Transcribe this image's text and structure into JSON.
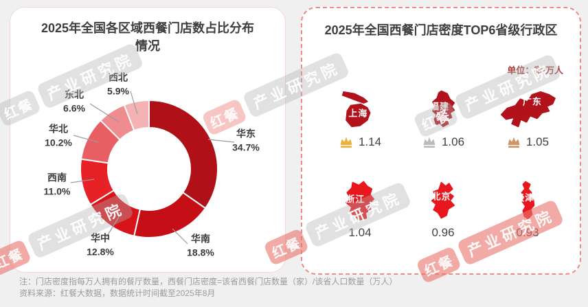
{
  "watermark": {
    "brand": "红餐",
    "org": "产业研究院"
  },
  "footer": {
    "note": "注：门店密度指每万人拥有的餐厅数量，西餐门店密度=该省西餐门店数量（家）/该省人口数量（万人）",
    "source": "资料来源：红餐大数据，数据统计时间截至2025年8月"
  },
  "chart_data": [
    {
      "type": "pie",
      "subtype": "donut",
      "title": "2025年全国各区域西餐门店数占比分布情况",
      "categories": [
        "华东",
        "华南",
        "华中",
        "西南",
        "华北",
        "东北",
        "西北"
      ],
      "values": [
        34.7,
        18.8,
        12.8,
        11.0,
        10.2,
        6.6,
        5.9
      ],
      "unit": "%",
      "colors": [
        "#b01118",
        "#c50e15",
        "#d8141b",
        "#e62227",
        "#e95e62",
        "#ef8c8f",
        "#f4b2b5"
      ],
      "start_angle_deg": 0,
      "direction": "clockwise",
      "inner_radius_ratio": 0.6,
      "legend": "none"
    },
    {
      "type": "table",
      "subtype": "map-ranking",
      "title": "2025年全国西餐门店密度TOP6省级行政区",
      "unit_label": "单位：家/万人",
      "items": [
        {
          "rank": 1,
          "name": "上海",
          "value": 1.14,
          "medal": "gold"
        },
        {
          "rank": 2,
          "name": "福建",
          "value": 1.06,
          "medal": "silver"
        },
        {
          "rank": 3,
          "name": "广东",
          "value": 1.05,
          "medal": "bronze"
        },
        {
          "rank": 4,
          "name": "浙江",
          "value": 1.04,
          "medal": null
        },
        {
          "rank": 5,
          "name": "北京",
          "value": 0.96,
          "medal": null
        },
        {
          "rank": 6,
          "name": "天津",
          "value": 0.93,
          "medal": null
        }
      ],
      "row1_map_color": "#b2121b",
      "row2_map_color": "#e8161d",
      "medal_colors": {
        "gold": "#edb23a",
        "silver": "#bcbcbc",
        "bronze": "#cc9668"
      }
    }
  ]
}
